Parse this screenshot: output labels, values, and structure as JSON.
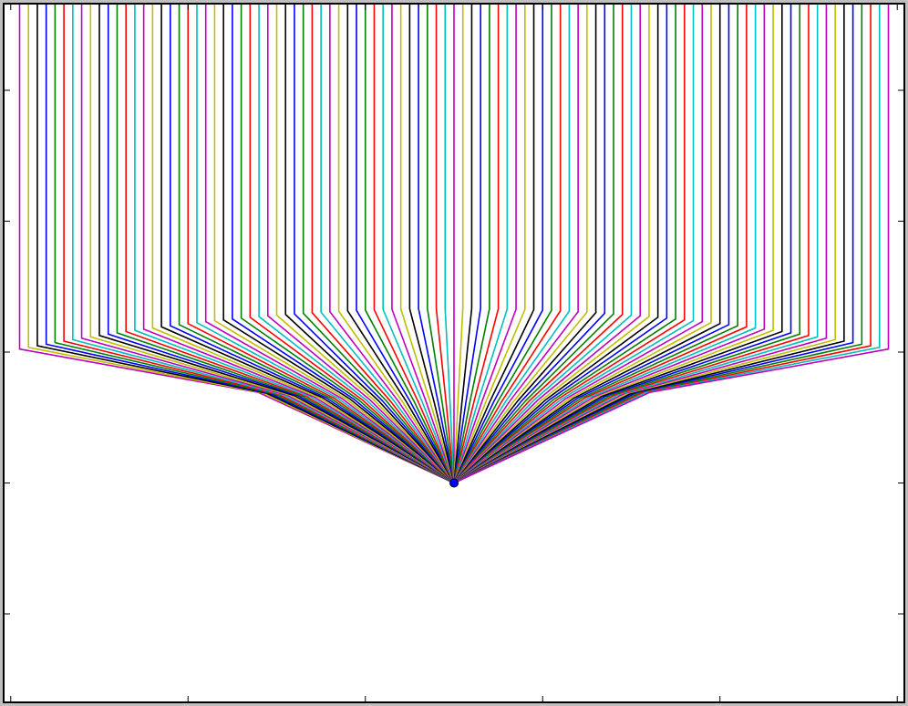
{
  "chart_data": {
    "type": "rays",
    "xlim": [
      -1.016,
      1.016
    ],
    "ylim": [
      -1.338,
      1.331
    ],
    "xticks": [
      -1,
      -0.6,
      -0.2,
      0.2,
      0.6,
      1
    ],
    "yticks": [
      1,
      0.5,
      0,
      -0.5,
      -1
    ],
    "lens_top": 0.167,
    "lens_bottom": -0.19,
    "exit_spread": 0.45,
    "focus": [
      0,
      -0.5
    ],
    "colors": [
      "#bf00bf",
      "#bfbf00",
      "#000000",
      "#0000ff",
      "#008000",
      "#ff0000",
      "#00bfbf"
    ],
    "x": [
      -0.98,
      -0.96,
      -0.94,
      -0.92,
      -0.9,
      -0.88,
      -0.86,
      -0.84,
      -0.82,
      -0.8,
      -0.78,
      -0.76,
      -0.74,
      -0.72,
      -0.7,
      -0.68,
      -0.66,
      -0.64,
      -0.62,
      -0.6,
      -0.58,
      -0.56,
      -0.54,
      -0.52,
      -0.5,
      -0.48,
      -0.46,
      -0.44,
      -0.42,
      -0.4,
      -0.38,
      -0.36,
      -0.34,
      -0.32,
      -0.3,
      -0.28,
      -0.26,
      -0.24,
      -0.22,
      -0.2,
      -0.18,
      -0.16,
      -0.14,
      -0.12,
      -0.1,
      -0.08,
      -0.06,
      -0.04,
      -0.02,
      0,
      0.02,
      0.04,
      0.06,
      0.08,
      0.1,
      0.12,
      0.14,
      0.16,
      0.18,
      0.2,
      0.22,
      0.24,
      0.26,
      0.28,
      0.3,
      0.32,
      0.34,
      0.36,
      0.38,
      0.4,
      0.42,
      0.44,
      0.46,
      0.48,
      0.5,
      0.52,
      0.54,
      0.56,
      0.58,
      0.6,
      0.62,
      0.64,
      0.66,
      0.68,
      0.7,
      0.72,
      0.74,
      0.76,
      0.78,
      0.8,
      0.82,
      0.84,
      0.86,
      0.88,
      0.9,
      0.92,
      0.94,
      0.96,
      0.98
    ]
  }
}
